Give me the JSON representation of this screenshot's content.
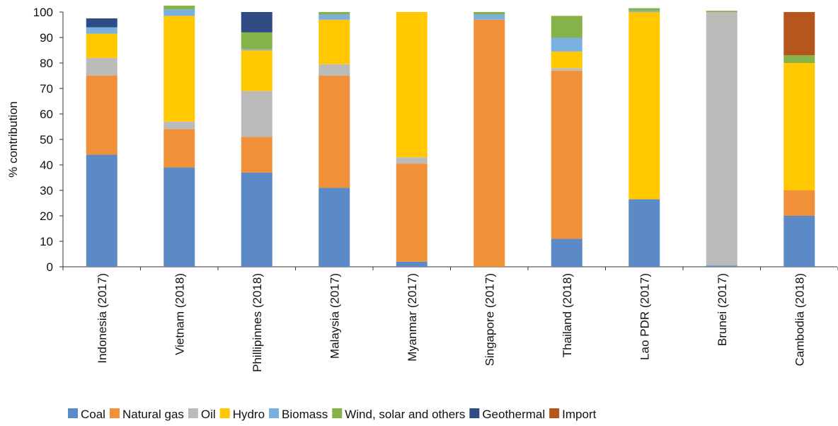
{
  "chart_data": {
    "type": "bar",
    "stacked": true,
    "ylabel": "% contribution",
    "ylim": [
      0,
      100
    ],
    "yticks": [
      0,
      10,
      20,
      30,
      40,
      50,
      60,
      70,
      80,
      90,
      100
    ],
    "grid": false,
    "legend_position": "bottom",
    "categories": [
      "Indonesia (2017)",
      "Vietnam (2018)",
      "Phillipinnes (2018)",
      "Malaysia (2017)",
      "Myanmar (2017)",
      "Singapore (2017)",
      "Thailand (2018)",
      "Lao PDR (2017)",
      "Brunei (2017)",
      "Cambodia (2018)"
    ],
    "series": [
      {
        "name": "Coal",
        "color": "#5b8ac6",
        "values": [
          44,
          39,
          37,
          31,
          2,
          0,
          11,
          26.5,
          0.5,
          20
        ]
      },
      {
        "name": "Natural gas",
        "color": "#f0913a",
        "values": [
          31,
          15,
          14,
          44,
          38.5,
          97,
          66,
          0,
          0,
          10
        ]
      },
      {
        "name": "Oil",
        "color": "#bdbbb9",
        "values": [
          7,
          3,
          18,
          4.5,
          2.5,
          0,
          1,
          0,
          99.5,
          0
        ]
      },
      {
        "name": "Hydro",
        "color": "#ffc800",
        "values": [
          9.5,
          41.5,
          16,
          17.5,
          57,
          0,
          6.5,
          73.5,
          0,
          50
        ]
      },
      {
        "name": "Biomass",
        "color": "#7ab0e0",
        "values": [
          2.5,
          2.5,
          0.5,
          2,
          0,
          2,
          5.5,
          0.5,
          0,
          0
        ]
      },
      {
        "name": "Wind, solar and others",
        "color": "#86b24a",
        "values": [
          0,
          1.5,
          6.5,
          1,
          0,
          1,
          8.5,
          1,
          0.5,
          3
        ]
      },
      {
        "name": "Geothermal",
        "color": "#2f4c85",
        "values": [
          3.5,
          0,
          8,
          0,
          0,
          0,
          0,
          0,
          0,
          0
        ]
      },
      {
        "name": "Import",
        "color": "#b5561c",
        "values": [
          0,
          0,
          0,
          0,
          0,
          0,
          0,
          0,
          0,
          17
        ]
      }
    ]
  }
}
